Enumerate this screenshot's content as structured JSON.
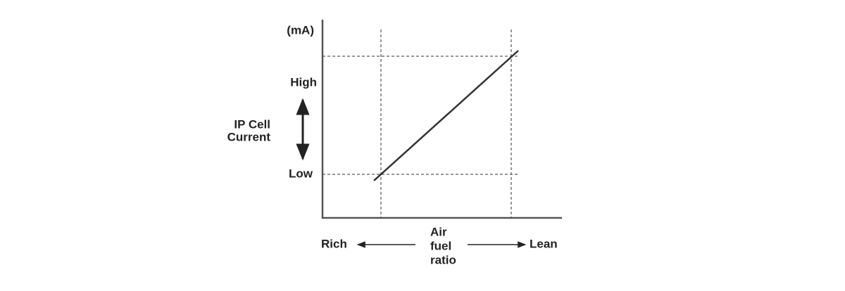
{
  "axis_unit": "(mA)",
  "y_labels": {
    "high": "High",
    "low": "Low"
  },
  "y_title": [
    "IP Cell",
    "Current"
  ],
  "x_labels": {
    "left": "Rich",
    "right": "Lean"
  },
  "x_title": [
    "Air",
    "fuel",
    "ratio"
  ]
}
